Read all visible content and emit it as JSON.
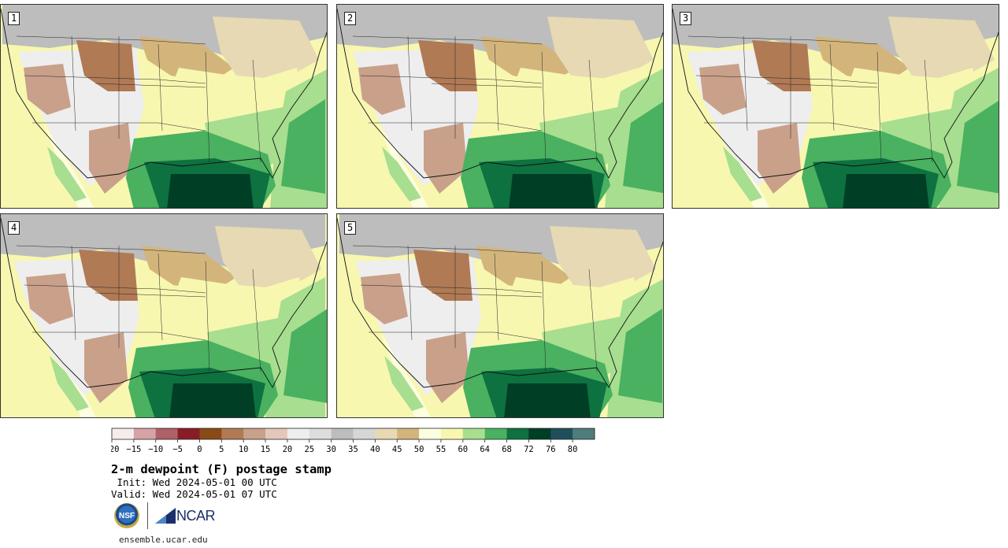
{
  "panels": [
    {
      "number": "1"
    },
    {
      "number": "2"
    },
    {
      "number": "3"
    },
    {
      "number": "4"
    },
    {
      "number": "5"
    }
  ],
  "colorbar": {
    "colors": [
      "#f6ecec",
      "#d6a2a6",
      "#b06067",
      "#8a1c28",
      "#8a4a16",
      "#b07a55",
      "#c9a08a",
      "#e3c7b9",
      "#eeeeee",
      "#dddddd",
      "#bdbdbd",
      "#d6d6d6",
      "#e6d9b3",
      "#d3b57c",
      "#fdfde0",
      "#f7f7b0",
      "#a7de8f",
      "#49b160",
      "#0d7140",
      "#003e26",
      "#1f4f5d",
      "#4f7c7c"
    ],
    "ticks": [
      "−20",
      "−15",
      "−10",
      "−5",
      "0",
      "5",
      "10",
      "15",
      "20",
      "25",
      "30",
      "35",
      "40",
      "45",
      "50",
      "55",
      "60",
      "64",
      "68",
      "72",
      "76",
      "80"
    ]
  },
  "title": "2-m dewpoint (F) postage stamp",
  "init": " Init: Wed 2024-05-01 00 UTC",
  "valid": "Valid: Wed 2024-05-01 07 UTC",
  "logos": {
    "nsf": "NSF",
    "ncar": "NCAR"
  },
  "site": "ensemble.ucar.edu"
}
